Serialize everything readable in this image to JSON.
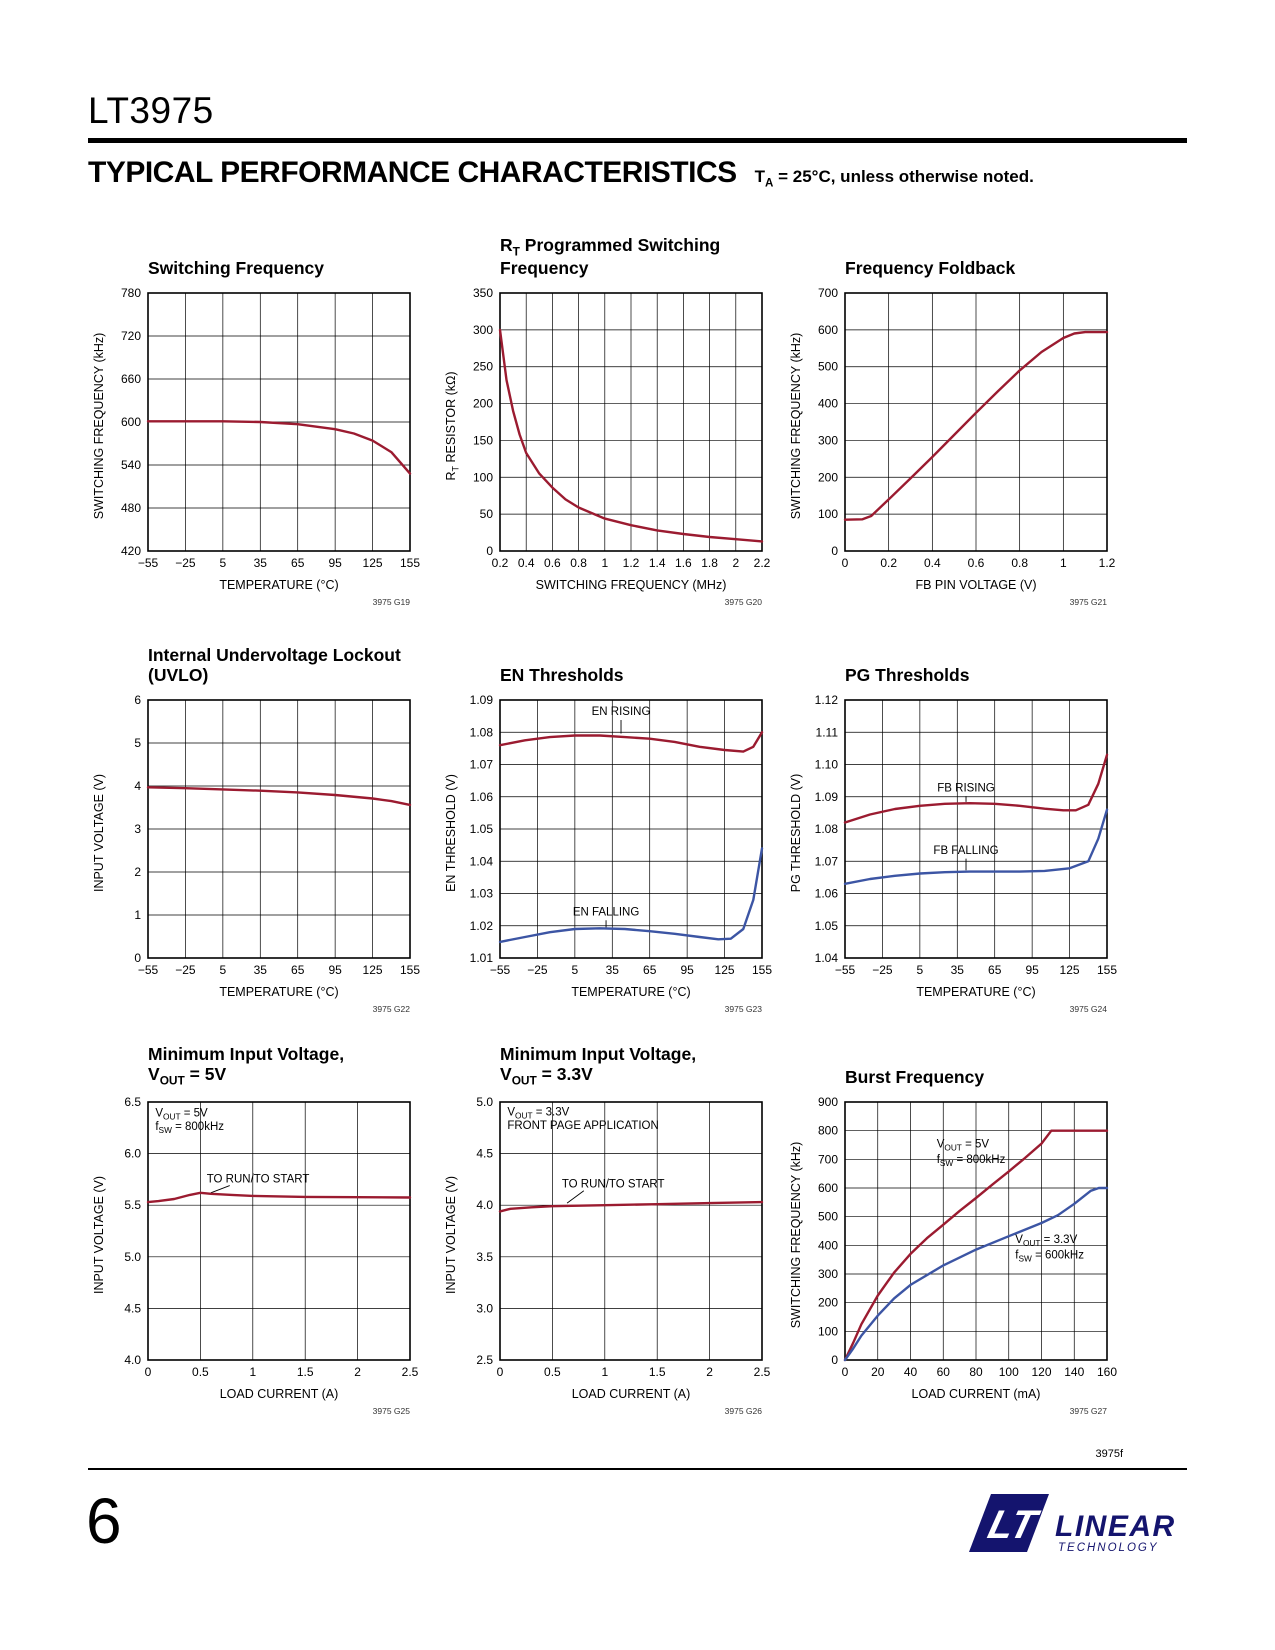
{
  "page": {
    "part_number": "LT3975",
    "section_title": "TYPICAL PERFORMANCE CHARACTERISTICS",
    "section_note": "T~A~ = 25°C, unless otherwise noted.",
    "footer_code": "3975f",
    "page_number": "6",
    "logo": {
      "mark": "LT",
      "name": "LINEAR",
      "sub": "TECHNOLOGY"
    }
  },
  "colors": {
    "red": "#9b1b30",
    "blue": "#3c55a4",
    "grid": "#000000",
    "ink": "#000000",
    "logo_navy": "#14146e"
  },
  "chart_data": [
    {
      "id": "G19",
      "type": "line",
      "title_lines": [
        "Switching Frequency"
      ],
      "xlabel": "TEMPERATURE (°C)",
      "ylabel": "SWITCHING FREQUENCY (kHz)",
      "xlim": [
        -55,
        155
      ],
      "ylim": [
        420,
        780
      ],
      "xticks": [
        "−55",
        "−25",
        "5",
        "35",
        "65",
        "95",
        "125",
        "155"
      ],
      "yticks": [
        "420",
        "480",
        "540",
        "600",
        "660",
        "720",
        "780"
      ],
      "ref": "3975 G19",
      "series": [
        {
          "name": "switching-frequency",
          "color": "red",
          "x": [
            -55,
            -25,
            5,
            35,
            65,
            95,
            110,
            125,
            140,
            155
          ],
          "y": [
            601,
            601,
            601,
            600,
            597,
            590,
            584,
            574,
            558,
            528
          ]
        }
      ],
      "annotations": [],
      "leaders": []
    },
    {
      "id": "G20",
      "type": "line",
      "title_lines": [
        "R~T~ Programmed Switching",
        "Frequency"
      ],
      "xlabel": "SWITCHING FREQUENCY (MHz)",
      "ylabel": "R~T~ RESISTOR (kΩ)",
      "xlim": [
        0.2,
        2.2
      ],
      "ylim": [
        0,
        350
      ],
      "xticks": [
        "0.2",
        "0.4",
        "0.6",
        "0.8",
        "1",
        "1.2",
        "1.4",
        "1.6",
        "1.8",
        "2",
        "2.2"
      ],
      "yticks": [
        "0",
        "50",
        "100",
        "150",
        "200",
        "250",
        "300",
        "350"
      ],
      "ref": "3975 G20",
      "series": [
        {
          "name": "rt-resistor",
          "color": "red",
          "x": [
            0.2,
            0.25,
            0.3,
            0.35,
            0.4,
            0.5,
            0.6,
            0.7,
            0.8,
            1.0,
            1.2,
            1.4,
            1.6,
            1.8,
            2.0,
            2.2
          ],
          "y": [
            300,
            232,
            190,
            158,
            133,
            105,
            86,
            70,
            59,
            44,
            35,
            28,
            23,
            19,
            16,
            13
          ]
        }
      ],
      "annotations": [],
      "leaders": []
    },
    {
      "id": "G21",
      "type": "line",
      "title_lines": [
        "Frequency Foldback"
      ],
      "xlabel": "FB PIN VOLTAGE (V)",
      "ylabel": "SWITCHING FREQUENCY (kHz)",
      "xlim": [
        0,
        1.2
      ],
      "ylim": [
        0,
        700
      ],
      "xticks": [
        "0",
        "0.2",
        "0.4",
        "0.6",
        "0.8",
        "1",
        "1.2"
      ],
      "yticks": [
        "0",
        "100",
        "200",
        "300",
        "400",
        "500",
        "600",
        "700"
      ],
      "ref": "3975 G21",
      "series": [
        {
          "name": "frequency-foldback",
          "color": "red",
          "x": [
            0,
            0.08,
            0.12,
            0.2,
            0.3,
            0.4,
            0.5,
            0.6,
            0.7,
            0.8,
            0.9,
            1.0,
            1.05,
            1.1,
            1.2
          ],
          "y": [
            85,
            86,
            95,
            140,
            197,
            255,
            315,
            375,
            433,
            490,
            540,
            578,
            590,
            594,
            594
          ]
        }
      ],
      "annotations": [],
      "leaders": []
    },
    {
      "id": "G22",
      "type": "line",
      "title_lines": [
        "Internal Undervoltage Lockout",
        "(UVLO)"
      ],
      "xlabel": "TEMPERATURE (°C)",
      "ylabel": "INPUT VOLTAGE (V)",
      "xlim": [
        -55,
        155
      ],
      "ylim": [
        0,
        6
      ],
      "xticks": [
        "−55",
        "−25",
        "5",
        "35",
        "65",
        "95",
        "125",
        "155"
      ],
      "yticks": [
        "0",
        "1",
        "2",
        "3",
        "4",
        "5",
        "6"
      ],
      "ref": "3975 G22",
      "series": [
        {
          "name": "uvlo",
          "color": "red",
          "x": [
            -55,
            -25,
            5,
            35,
            65,
            95,
            125,
            140,
            155
          ],
          "y": [
            3.97,
            3.95,
            3.92,
            3.89,
            3.85,
            3.79,
            3.71,
            3.65,
            3.56
          ]
        }
      ],
      "annotations": [],
      "leaders": []
    },
    {
      "id": "G23",
      "type": "line",
      "title_lines": [
        "EN Thresholds"
      ],
      "xlabel": "TEMPERATURE (°C)",
      "ylabel": "EN THRESHOLD (V)",
      "xlim": [
        -55,
        155
      ],
      "ylim": [
        1.01,
        1.09
      ],
      "xticks": [
        "−55",
        "−25",
        "5",
        "35",
        "65",
        "95",
        "125",
        "155"
      ],
      "yticks": [
        "1.01",
        "1.02",
        "1.03",
        "1.04",
        "1.05",
        "1.06",
        "1.07",
        "1.08",
        "1.09"
      ],
      "ref": "3975 G23",
      "series": [
        {
          "name": "EN RISING",
          "color": "red",
          "x": [
            -55,
            -35,
            -15,
            5,
            25,
            45,
            65,
            85,
            105,
            125,
            140,
            148,
            155
          ],
          "y": [
            1.076,
            1.0775,
            1.0785,
            1.079,
            1.079,
            1.0785,
            1.078,
            1.077,
            1.0755,
            1.0745,
            1.074,
            1.0755,
            1.08
          ]
        },
        {
          "name": "EN FALLING",
          "color": "blue",
          "x": [
            -55,
            -35,
            -15,
            5,
            25,
            45,
            65,
            85,
            105,
            120,
            130,
            140,
            148,
            155
          ],
          "y": [
            1.015,
            1.0165,
            1.018,
            1.019,
            1.0192,
            1.019,
            1.0183,
            1.0175,
            1.0165,
            1.0158,
            1.016,
            1.019,
            1.028,
            1.044
          ]
        }
      ],
      "annotations": [
        {
          "text": "EN RISING",
          "x": 42,
          "y": 1.0853,
          "anchor": "middle"
        },
        {
          "text": "EN FALLING",
          "x": 30,
          "y": 1.0232,
          "anchor": "middle"
        }
      ],
      "leaders": [
        {
          "x1": 42,
          "y1": 1.0838,
          "x2": 42,
          "y2": 1.0796
        },
        {
          "x1": 30,
          "y1": 1.0217,
          "x2": 30,
          "y2": 1.0194
        }
      ]
    },
    {
      "id": "G24",
      "type": "line",
      "title_lines": [
        "PG Thresholds"
      ],
      "xlabel": "TEMPERATURE (°C)",
      "ylabel": "PG THRESHOLD (V)",
      "xlim": [
        -55,
        155
      ],
      "ylim": [
        1.04,
        1.12
      ],
      "xticks": [
        "−55",
        "−25",
        "5",
        "35",
        "65",
        "95",
        "125",
        "155"
      ],
      "yticks": [
        "1.04",
        "1.05",
        "1.06",
        "1.07",
        "1.08",
        "1.09",
        "1.10",
        "1.11",
        "1.12"
      ],
      "ref": "3975 G24",
      "series": [
        {
          "name": "FB RISING",
          "color": "red",
          "x": [
            -55,
            -35,
            -15,
            5,
            25,
            45,
            65,
            85,
            105,
            120,
            130,
            140,
            148,
            155
          ],
          "y": [
            1.082,
            1.0845,
            1.0862,
            1.0872,
            1.0878,
            1.088,
            1.0878,
            1.0872,
            1.0863,
            1.0858,
            1.0858,
            1.0875,
            1.094,
            1.103
          ]
        },
        {
          "name": "FB FALLING",
          "color": "blue",
          "x": [
            -55,
            -35,
            -15,
            5,
            25,
            45,
            65,
            85,
            105,
            125,
            140,
            148,
            155
          ],
          "y": [
            1.063,
            1.0645,
            1.0655,
            1.0662,
            1.0666,
            1.0668,
            1.0668,
            1.0668,
            1.067,
            1.0678,
            1.07,
            1.077,
            1.086
          ]
        }
      ],
      "annotations": [
        {
          "text": "FB RISING",
          "x": 42,
          "y": 1.0916,
          "anchor": "middle"
        },
        {
          "text": "FB FALLING",
          "x": 42,
          "y": 1.0722,
          "anchor": "middle"
        }
      ],
      "leaders": [
        {
          "x1": 42,
          "y1": 1.0902,
          "x2": 42,
          "y2": 1.0884
        },
        {
          "x1": 42,
          "y1": 1.0708,
          "x2": 42,
          "y2": 1.0672
        }
      ]
    },
    {
      "id": "G25",
      "type": "line",
      "title_lines": [
        "Minimum Input Voltage,",
        "V~OUT~ = 5V"
      ],
      "xlabel": "LOAD CURRENT (A)",
      "ylabel": "INPUT VOLTAGE (V)",
      "xlim": [
        0,
        2.5
      ],
      "ylim": [
        4.0,
        6.5
      ],
      "xticks": [
        "0",
        "0.5",
        "1",
        "1.5",
        "2",
        "2.5"
      ],
      "yticks": [
        "4.0",
        "4.5",
        "5.0",
        "5.5",
        "6.0",
        "6.5"
      ],
      "ref": "3975 G25",
      "series": [
        {
          "name": "to-run-to-start",
          "color": "red",
          "x": [
            0,
            0.1,
            0.25,
            0.4,
            0.5,
            0.6,
            0.8,
            1.0,
            1.25,
            1.5,
            2.0,
            2.5
          ],
          "y": [
            5.53,
            5.54,
            5.56,
            5.6,
            5.62,
            5.61,
            5.6,
            5.59,
            5.585,
            5.58,
            5.578,
            5.575
          ]
        }
      ],
      "annotations": [
        {
          "text": "V~OUT~ = 5V",
          "x": 0.07,
          "y": 6.36,
          "anchor": "start"
        },
        {
          "text": "f~SW~ = 800kHz",
          "x": 0.07,
          "y": 6.23,
          "anchor": "start"
        },
        {
          "text": "TO RUN/TO START",
          "x": 1.05,
          "y": 5.72,
          "anchor": "middle"
        }
      ],
      "leaders": [
        {
          "x1": 0.78,
          "y1": 5.69,
          "x2": 0.6,
          "y2": 5.62
        }
      ]
    },
    {
      "id": "G26",
      "type": "line",
      "title_lines": [
        "Minimum Input Voltage,",
        "V~OUT~ = 3.3V"
      ],
      "xlabel": "LOAD CURRENT (A)",
      "ylabel": "INPUT VOLTAGE (V)",
      "xlim": [
        0,
        2.5
      ],
      "ylim": [
        2.5,
        5.0
      ],
      "xticks": [
        "0",
        "0.5",
        "1",
        "1.5",
        "2",
        "2.5"
      ],
      "yticks": [
        "2.5",
        "3.0",
        "3.5",
        "4.0",
        "4.5",
        "5.0"
      ],
      "ref": "3975 G26",
      "series": [
        {
          "name": "to-run-to-start",
          "color": "red",
          "x": [
            0,
            0.1,
            0.3,
            0.5,
            1.0,
            1.5,
            2.0,
            2.5
          ],
          "y": [
            3.94,
            3.965,
            3.98,
            3.99,
            4.0,
            4.01,
            4.02,
            4.03
          ]
        }
      ],
      "annotations": [
        {
          "text": "V~OUT~ = 3.3V",
          "x": 0.07,
          "y": 4.87,
          "anchor": "start"
        },
        {
          "text": "FRONT PAGE APPLICATION",
          "x": 0.07,
          "y": 4.74,
          "anchor": "start"
        },
        {
          "text": "TO RUN/TO START",
          "x": 1.08,
          "y": 4.17,
          "anchor": "middle"
        }
      ],
      "leaders": [
        {
          "x1": 0.8,
          "y1": 4.14,
          "x2": 0.64,
          "y2": 4.02
        }
      ]
    },
    {
      "id": "G27",
      "type": "line",
      "title_lines": [
        "Burst Frequency"
      ],
      "xlabel": "LOAD CURRENT (mA)",
      "ylabel": "SWITCHING FREQUENCY (kHz)",
      "xlim": [
        0,
        160
      ],
      "ylim": [
        0,
        900
      ],
      "xticks": [
        "0",
        "20",
        "40",
        "60",
        "80",
        "100",
        "120",
        "140",
        "160"
      ],
      "yticks": [
        "0",
        "100",
        "200",
        "300",
        "400",
        "500",
        "600",
        "700",
        "800",
        "900"
      ],
      "ref": "3975 G27",
      "series": [
        {
          "name": "vout-5v-800khz",
          "color": "red",
          "x": [
            0,
            5,
            10,
            20,
            30,
            40,
            50,
            60,
            70,
            80,
            90,
            100,
            110,
            120,
            126,
            135,
            160
          ],
          "y": [
            0,
            60,
            125,
            225,
            305,
            370,
            425,
            472,
            520,
            565,
            612,
            658,
            705,
            755,
            800,
            800,
            800
          ]
        },
        {
          "name": "vout-3v3-600khz",
          "color": "blue",
          "x": [
            0,
            5,
            10,
            20,
            30,
            40,
            60,
            80,
            100,
            120,
            130,
            140,
            150,
            155,
            160
          ],
          "y": [
            0,
            40,
            85,
            155,
            215,
            262,
            330,
            385,
            432,
            478,
            505,
            545,
            590,
            600,
            600
          ]
        }
      ],
      "annotations": [
        {
          "text": "V~OUT~ = 5V",
          "x": 56,
          "y": 742,
          "anchor": "start"
        },
        {
          "text": "f~SW~ = 800kHz",
          "x": 56,
          "y": 688,
          "anchor": "start"
        },
        {
          "text": "V~OUT~ = 3.3V",
          "x": 104,
          "y": 408,
          "anchor": "start"
        },
        {
          "text": "f~SW~ = 600kHz",
          "x": 104,
          "y": 354,
          "anchor": "start"
        }
      ],
      "leaders": []
    }
  ]
}
